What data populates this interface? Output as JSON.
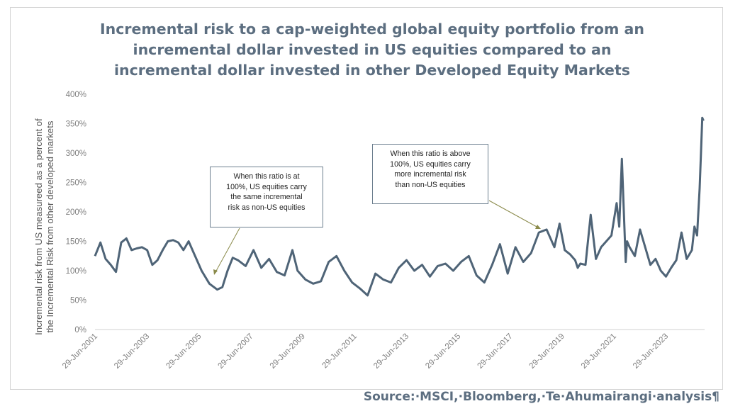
{
  "source": "Source:·MSCI,·Bloomberg,·Te·Ahumairangi·analysis¶",
  "pilcrow_mark": "¶",
  "chart_data": {
    "type": "line",
    "title": [
      "Incremental risk to a cap-weighted global equity portfolio from an",
      "incremental dollar invested in US equities compared to an",
      "incremental dollar invested in other Developed Equity Markets"
    ],
    "ylabel": [
      "Incremental risk from US measureed as a percent of",
      "the Incremental Risk from other developed markets"
    ],
    "xlabel": "",
    "ylim": [
      0,
      400
    ],
    "yticks": [
      "0%",
      "50%",
      "100%",
      "150%",
      "200%",
      "250%",
      "300%",
      "350%",
      "400%"
    ],
    "xticks": [
      "29-Jun-2001",
      "29-Jun-2003",
      "29-Jun-2005",
      "29-Jun-2007",
      "29-Jun-2009",
      "29-Jun-2011",
      "29-Jun-2013",
      "29-Jun-2015",
      "29-Jun-2017",
      "29-Jun-2019",
      "29-Jun-2021",
      "29-Jun-2023"
    ],
    "grid": false,
    "line_color": "#4f6477",
    "series": [
      {
        "x": [
          2001.49,
          2001.7,
          2001.9,
          2002.1,
          2002.3,
          2002.5,
          2002.7,
          2002.9,
          2003.1,
          2003.3,
          2003.5,
          2003.7,
          2003.9,
          2004.1,
          2004.3,
          2004.5,
          2004.7,
          2004.9,
          2005.1,
          2005.3,
          2005.6,
          2005.9,
          2006.2,
          2006.4,
          2006.6,
          2006.8,
          2007.0,
          2007.3,
          2007.6,
          2007.9,
          2008.2,
          2008.5,
          2008.8,
          2009.1,
          2009.3,
          2009.6,
          2009.9,
          2010.2,
          2010.5,
          2010.8,
          2011.1,
          2011.4,
          2011.7,
          2012.0,
          2012.3,
          2012.6,
          2012.9,
          2013.2,
          2013.5,
          2013.8,
          2014.1,
          2014.4,
          2014.7,
          2015.0,
          2015.3,
          2015.6,
          2015.9,
          2016.2,
          2016.5,
          2016.8,
          2017.1,
          2017.4,
          2017.7,
          2018.0,
          2018.3,
          2018.6,
          2018.9,
          2019.2,
          2019.4,
          2019.6,
          2019.8,
          2020.0,
          2020.1,
          2020.2,
          2020.4,
          2020.6,
          2020.8,
          2021.0,
          2021.2,
          2021.4,
          2021.6,
          2021.7,
          2021.8,
          2021.95,
          2022.0,
          2022.1,
          2022.3,
          2022.5,
          2022.7,
          2022.9,
          2023.1,
          2023.3,
          2023.5,
          2023.7,
          2023.9,
          2024.1,
          2024.3,
          2024.5,
          2024.6,
          2024.7,
          2024.8,
          2024.85,
          2024.9,
          2024.95
        ],
        "y": [
          125,
          148,
          120,
          110,
          98,
          148,
          155,
          135,
          138,
          140,
          135,
          110,
          118,
          135,
          150,
          152,
          148,
          135,
          150,
          130,
          100,
          78,
          68,
          72,
          100,
          122,
          118,
          108,
          135,
          105,
          120,
          98,
          92,
          135,
          100,
          85,
          78,
          82,
          115,
          125,
          100,
          80,
          70,
          58,
          95,
          85,
          80,
          105,
          118,
          100,
          110,
          90,
          108,
          112,
          100,
          115,
          125,
          92,
          80,
          110,
          145,
          95,
          140,
          115,
          130,
          165,
          170,
          140,
          180,
          135,
          128,
          118,
          105,
          112,
          110,
          195,
          120,
          140,
          150,
          160,
          215,
          175,
          290,
          115,
          150,
          140,
          125,
          170,
          140,
          110,
          120,
          100,
          90,
          105,
          118,
          165,
          120,
          135,
          175,
          160,
          240,
          300,
          360,
          355
        ]
      }
    ]
  },
  "callouts": [
    {
      "lines": [
        "When this ratio is at",
        "100%, US equities carry",
        "the same incremental",
        "risk as non-US equities"
      ]
    },
    {
      "lines": [
        "When this ratio is above",
        "100%, US equities carry",
        "more incremental risk",
        "than non-US equities"
      ]
    }
  ]
}
